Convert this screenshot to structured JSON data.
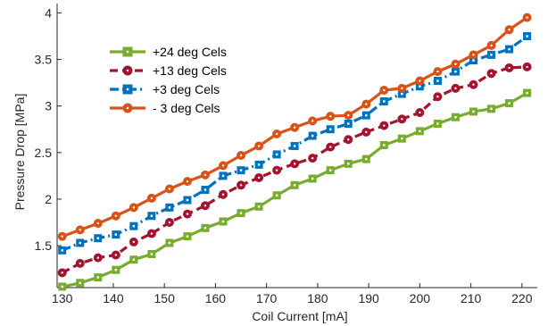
{
  "chart_data": {
    "type": "line",
    "xlabel": "Coil Current [mA]",
    "ylabel": "Pressure Drop [MPa]",
    "xlim": [
      129,
      223
    ],
    "ylim": [
      1.05,
      4.1
    ],
    "xticks": [
      130,
      140,
      150,
      160,
      170,
      180,
      190,
      200,
      210,
      220
    ],
    "yticks": [
      1.5,
      2,
      2.5,
      3,
      3.5,
      4
    ],
    "ytick_labels": [
      "1.5",
      "2",
      "2.5",
      "3",
      "3.5",
      "4"
    ],
    "grid": false,
    "legend_position": "top-left",
    "x": [
      130,
      133.5,
      137,
      140.5,
      144,
      147.5,
      151,
      154.5,
      158,
      161.5,
      165,
      168.5,
      172,
      175.5,
      179,
      182.5,
      186,
      189.5,
      193,
      196.5,
      200,
      203.5,
      207,
      210.5,
      214,
      217.5,
      221
    ],
    "series": [
      {
        "name": "+24 deg Cels",
        "color": "#77ac30",
        "line_style": "solid",
        "marker": "square",
        "values": [
          1.06,
          1.1,
          1.16,
          1.24,
          1.35,
          1.41,
          1.53,
          1.6,
          1.69,
          1.76,
          1.85,
          1.92,
          2.04,
          2.15,
          2.22,
          2.31,
          2.38,
          2.43,
          2.58,
          2.65,
          2.73,
          2.81,
          2.88,
          2.94,
          2.97,
          3.03,
          3.14
        ]
      },
      {
        "name": "+13 deg Cels",
        "color": "#a2142f",
        "line_style": "dashed",
        "marker": "circle",
        "values": [
          1.21,
          1.31,
          1.37,
          1.4,
          1.54,
          1.63,
          1.75,
          1.84,
          1.93,
          2.05,
          2.15,
          2.23,
          2.31,
          2.38,
          2.44,
          2.56,
          2.64,
          2.72,
          2.79,
          2.86,
          2.93,
          3.1,
          3.19,
          3.23,
          3.35,
          3.41,
          3.42
        ]
      },
      {
        "name": "+3 deg Cels",
        "color": "#0072bd",
        "line_style": "dashdot",
        "marker": "square",
        "values": [
          1.45,
          1.53,
          1.58,
          1.62,
          1.71,
          1.82,
          1.91,
          1.99,
          2.1,
          2.25,
          2.31,
          2.37,
          2.48,
          2.57,
          2.68,
          2.75,
          2.81,
          2.9,
          3.05,
          3.13,
          3.21,
          3.27,
          3.37,
          3.49,
          3.55,
          3.61,
          3.75
        ]
      },
      {
        "name": "- 3 deg Cels",
        "color": "#d95319",
        "line_style": "solid",
        "marker": "circle",
        "values": [
          1.6,
          1.67,
          1.74,
          1.82,
          1.91,
          2.01,
          2.11,
          2.19,
          2.26,
          2.36,
          2.47,
          2.57,
          2.7,
          2.77,
          2.84,
          2.89,
          2.9,
          3.02,
          3.17,
          3.19,
          3.27,
          3.37,
          3.45,
          3.55,
          3.65,
          3.82,
          3.95
        ]
      }
    ]
  }
}
